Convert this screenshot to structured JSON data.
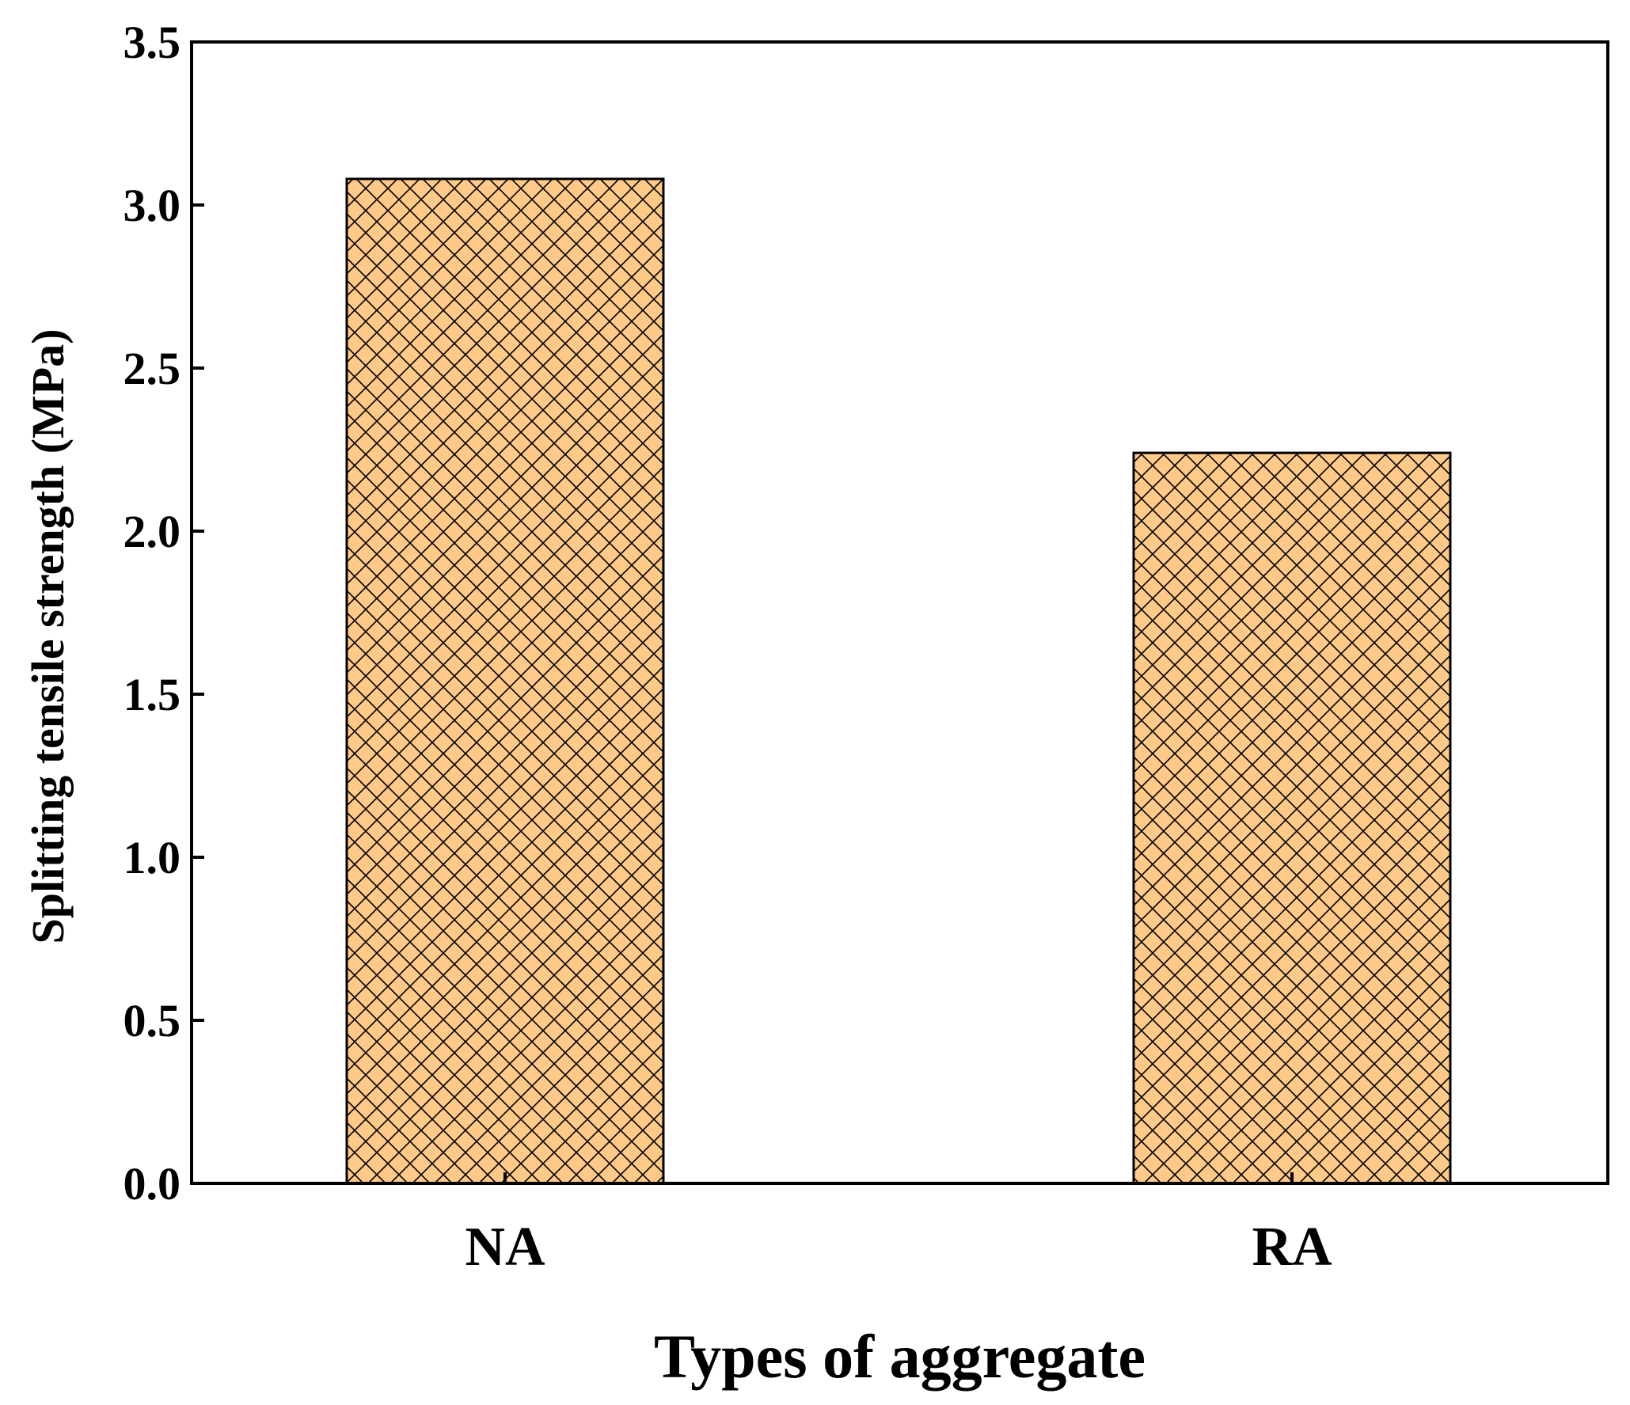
{
  "chart_data": {
    "type": "bar",
    "categories": [
      "NA",
      "RA"
    ],
    "values": [
      3.08,
      2.24
    ],
    "xlabel": "Types of aggregate",
    "ylabel": "Splitting tensile strength (MPa)",
    "ylim": [
      0,
      3.5
    ],
    "yticks": [
      0.0,
      0.5,
      1.0,
      1.5,
      2.0,
      2.5,
      3.0,
      3.5
    ],
    "ytick_labels": [
      "0.0",
      "0.5",
      "1.0",
      "1.5",
      "2.0",
      "2.5",
      "3.0",
      "3.5"
    ],
    "grid": false,
    "legend": "none",
    "bar_fill": "#FFC98A",
    "bar_hatch": "crosshatch",
    "bar_edge": "#000000"
  }
}
